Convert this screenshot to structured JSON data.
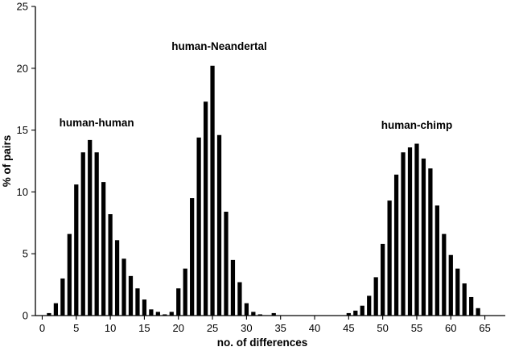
{
  "chart_data": {
    "type": "bar",
    "title": "",
    "xlabel": "no. of differences",
    "ylabel": "% of pairs",
    "xlim": [
      -1,
      68
    ],
    "ylim": [
      0,
      25
    ],
    "xticks": [
      0,
      5,
      10,
      15,
      20,
      25,
      30,
      35,
      40,
      45,
      50,
      55,
      60,
      65
    ],
    "yticks": [
      0,
      5,
      10,
      15,
      20,
      25
    ],
    "grid": false,
    "legend": "none",
    "annotations": [
      {
        "text": "human-human",
        "x": 8,
        "y": 15.3
      },
      {
        "text": "human-Neandertal",
        "x": 26,
        "y": 21.5
      },
      {
        "text": "human-chimp",
        "x": 55,
        "y": 15.1
      }
    ],
    "series": [
      {
        "x": [
          1,
          2,
          3,
          4,
          5,
          6,
          7,
          8,
          9,
          10,
          11,
          12,
          13,
          14,
          15,
          16,
          17,
          18
        ],
        "values": [
          0.2,
          1.0,
          3.0,
          6.6,
          10.6,
          13.2,
          14.2,
          13.2,
          10.8,
          8.2,
          6.1,
          4.6,
          3.2,
          2.2,
          1.3,
          0.5,
          0.3,
          0.1
        ]
      },
      {
        "x": [
          19,
          20,
          21,
          22,
          23,
          24,
          25,
          26,
          27,
          28,
          29,
          30,
          31,
          32,
          34
        ],
        "values": [
          0.3,
          2.2,
          3.8,
          9.5,
          14.4,
          17.3,
          20.2,
          14.6,
          8.4,
          4.5,
          2.7,
          1.0,
          0.3,
          0.1,
          0.2
        ]
      },
      {
        "x": [
          45,
          46,
          47,
          48,
          49,
          50,
          51,
          52,
          53,
          54,
          55,
          56,
          57,
          58,
          59,
          60,
          61,
          62,
          63,
          64
        ],
        "values": [
          0.2,
          0.4,
          0.8,
          1.6,
          3.1,
          5.8,
          9.3,
          11.4,
          13.2,
          13.6,
          13.9,
          12.7,
          11.9,
          8.9,
          6.6,
          4.9,
          3.8,
          2.6,
          1.5,
          0.6
        ]
      }
    ]
  }
}
